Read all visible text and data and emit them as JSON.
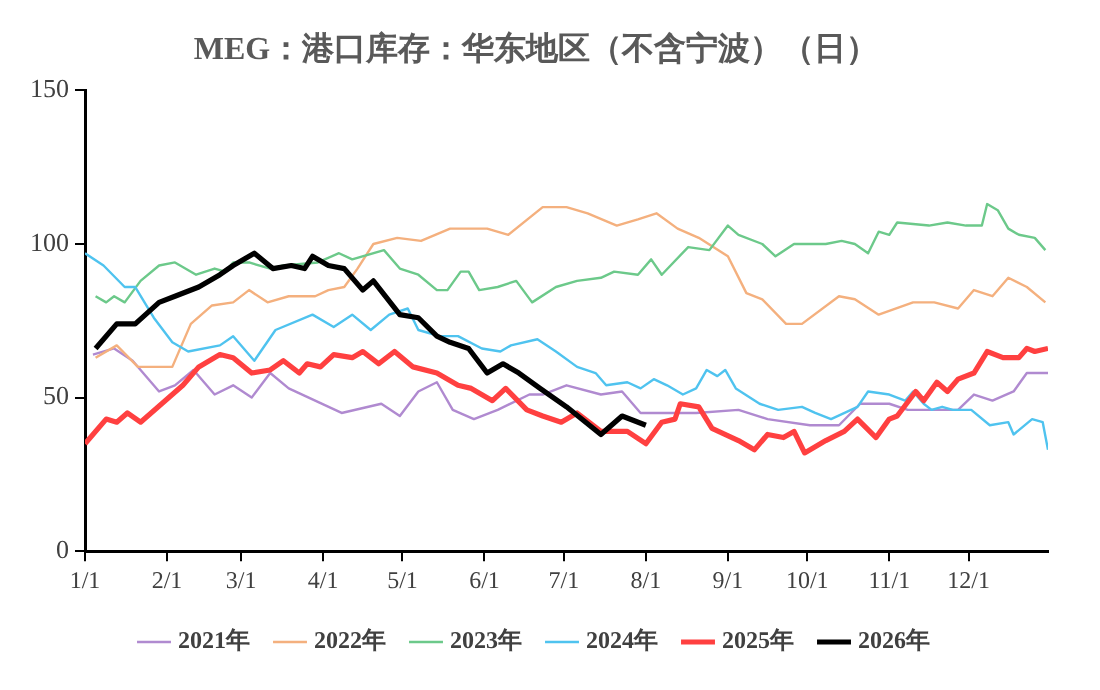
{
  "chart_data": {
    "type": "line",
    "title": "MEG：港口库存：华东地区（不含宁波）（日）",
    "xlim": [
      "--01-01",
      "--12-31"
    ],
    "xticks": [
      {
        "value": "--01-01",
        "label": "1/1"
      },
      {
        "value": "--02-01",
        "label": "2/1"
      },
      {
        "value": "--03-01",
        "label": "3/1"
      },
      {
        "value": "--04-01",
        "label": "4/1"
      },
      {
        "value": "--05-01",
        "label": "5/1"
      },
      {
        "value": "--06-01",
        "label": "6/1"
      },
      {
        "value": "--07-01",
        "label": "7/1"
      },
      {
        "value": "--08-01",
        "label": "8/1"
      },
      {
        "value": "--09-01",
        "label": "9/1"
      },
      {
        "value": "--10-01",
        "label": "10/1"
      },
      {
        "value": "--11-01",
        "label": "11/1"
      },
      {
        "value": "--12-01",
        "label": "12/1"
      }
    ],
    "ylim": [
      0,
      150
    ],
    "yticks": [
      0,
      50,
      100,
      150
    ],
    "grid": false,
    "legend": "bottom",
    "marker": "none",
    "line_style": "solid",
    "series": [
      {
        "name": "2021年",
        "color": "#b08ad0",
        "x": [
          "--01-04",
          "--01-12",
          "--01-19",
          "--01-29",
          "--02-04",
          "--02-11",
          "--02-19",
          "--02-26",
          "--03-05",
          "--03-12",
          "--03-19",
          "--04-08",
          "--04-23",
          "--04-30",
          "--05-07",
          "--05-14",
          "--05-20",
          "--05-28",
          "--06-06",
          "--06-18",
          "--06-23",
          "--07-02",
          "--07-15",
          "--07-23",
          "--07-30",
          "--08-09",
          "--08-20",
          "--09-05",
          "--09-16",
          "--10-02",
          "--10-13",
          "--10-21",
          "--11-01",
          "--11-08",
          "--11-19",
          "--11-27",
          "--12-03",
          "--12-10",
          "--12-18",
          "--12-23",
          "--12-31"
        ],
        "values": [
          64,
          66,
          62,
          52,
          54,
          59,
          51,
          54,
          50,
          58,
          53,
          45,
          48,
          44,
          52,
          55,
          46,
          43,
          46,
          51,
          51,
          54,
          51,
          52,
          45,
          45,
          45,
          46,
          43,
          41,
          41,
          48,
          48,
          46,
          46,
          46,
          51,
          49,
          52,
          58,
          58
        ]
      },
      {
        "name": "2022年",
        "color": "#f4b07e",
        "x": [
          "--01-05",
          "--01-13",
          "--01-21",
          "--02-03",
          "--02-10",
          "--02-18",
          "--02-26",
          "--03-04",
          "--03-11",
          "--03-19",
          "--03-29",
          "--04-03",
          "--04-09",
          "--04-14",
          "--04-20",
          "--04-29",
          "--05-08",
          "--05-19",
          "--06-02",
          "--06-10",
          "--06-23",
          "--07-02",
          "--07-10",
          "--07-21",
          "--07-29",
          "--08-05",
          "--08-13",
          "--08-21",
          "--09-01",
          "--09-08",
          "--09-14",
          "--09-23",
          "--09-29",
          "--10-13",
          "--10-19",
          "--10-28",
          "--11-10",
          "--11-18",
          "--11-27",
          "--12-03",
          "--12-10",
          "--12-16",
          "--12-23",
          "--12-30"
        ],
        "values": [
          63,
          67,
          60,
          60,
          74,
          80,
          81,
          85,
          81,
          83,
          83,
          85,
          86,
          92,
          100,
          102,
          101,
          105,
          105,
          103,
          112,
          112,
          110,
          106,
          108,
          110,
          105,
          102,
          96,
          84,
          82,
          74,
          74,
          83,
          82,
          77,
          81,
          81,
          79,
          85,
          83,
          89,
          86,
          81
        ]
      },
      {
        "name": "2023年",
        "color": "#6cc98a",
        "x": [
          "--01-05",
          "--01-09",
          "--01-12",
          "--01-16",
          "--01-22",
          "--01-29",
          "--02-04",
          "--02-12",
          "--02-19",
          "--02-23",
          "--02-26",
          "--03-04",
          "--03-12",
          "--03-17",
          "--03-30",
          "--04-07",
          "--04-12",
          "--04-24",
          "--04-30",
          "--05-07",
          "--05-14",
          "--05-18",
          "--05-23",
          "--05-26",
          "--05-30",
          "--06-06",
          "--06-13",
          "--06-19",
          "--06-28",
          "--07-06",
          "--07-15",
          "--07-20",
          "--07-29",
          "--08-03",
          "--08-07",
          "--08-17",
          "--08-25",
          "--09-01",
          "--09-05",
          "--09-14",
          "--09-19",
          "--09-26",
          "--10-08",
          "--10-14",
          "--10-19",
          "--10-24",
          "--10-28",
          "--11-01",
          "--11-04",
          "--11-16",
          "--11-23",
          "--11-30",
          "--12-06",
          "--12-08",
          "--12-12",
          "--12-16",
          "--12-20",
          "--12-26",
          "--12-30"
        ],
        "values": [
          83,
          81,
          83,
          81,
          88,
          93,
          94,
          90,
          92,
          91,
          94,
          94,
          92,
          93,
          94,
          97,
          95,
          98,
          92,
          90,
          85,
          85,
          91,
          91,
          85,
          86,
          88,
          81,
          86,
          88,
          89,
          91,
          90,
          95,
          90,
          99,
          98,
          106,
          103,
          100,
          96,
          100,
          100,
          101,
          100,
          97,
          104,
          103,
          107,
          106,
          107,
          106,
          106,
          113,
          111,
          105,
          103,
          102,
          98
        ]
      },
      {
        "name": "2024年",
        "color": "#4fc3ef",
        "x": [
          "--01-01",
          "--01-08",
          "--01-16",
          "--01-20",
          "--01-27",
          "--02-03",
          "--02-09",
          "--02-21",
          "--02-26",
          "--03-06",
          "--03-14",
          "--03-28",
          "--04-05",
          "--04-12",
          "--04-19",
          "--04-26",
          "--05-03",
          "--05-07",
          "--05-15",
          "--05-22",
          "--05-31",
          "--06-07",
          "--06-11",
          "--06-21",
          "--06-28",
          "--07-06",
          "--07-13",
          "--07-17",
          "--07-25",
          "--07-30",
          "--08-04",
          "--08-09",
          "--08-15",
          "--08-20",
          "--08-24",
          "--08-28",
          "--08-31",
          "--09-04",
          "--09-13",
          "--09-20",
          "--09-29",
          "--10-04",
          "--10-10",
          "--10-20",
          "--10-24",
          "--11-01",
          "--11-07",
          "--11-10",
          "--11-14",
          "--11-17",
          "--11-21",
          "--11-25",
          "--12-02",
          "--12-09",
          "--12-16",
          "--12-18",
          "--12-25",
          "--12-29",
          "--12-31"
        ],
        "values": [
          97,
          93,
          86,
          86,
          76,
          68,
          65,
          67,
          70,
          62,
          72,
          77,
          73,
          77,
          72,
          77,
          79,
          72,
          70,
          70,
          66,
          65,
          67,
          69,
          65,
          60,
          58,
          54,
          55,
          53,
          56,
          54,
          51,
          53,
          59,
          57,
          59,
          53,
          48,
          46,
          47,
          45,
          43,
          47,
          52,
          51,
          49,
          52,
          48,
          46,
          47,
          46,
          46,
          41,
          42,
          38,
          43,
          42,
          33
        ]
      },
      {
        "name": "2025年",
        "color": "#ff4040",
        "x": [
          "--01-01",
          "--01-09",
          "--01-13",
          "--01-17",
          "--01-22",
          "--01-30",
          "--02-07",
          "--02-13",
          "--02-21",
          "--02-26",
          "--03-05",
          "--03-12",
          "--03-17",
          "--03-23",
          "--03-26",
          "--03-31",
          "--04-05",
          "--04-12",
          "--04-16",
          "--04-22",
          "--04-28",
          "--05-05",
          "--05-14",
          "--05-22",
          "--05-27",
          "--06-04",
          "--06-09",
          "--06-17",
          "--06-23",
          "--06-30",
          "--07-06",
          "--07-15",
          "--07-25",
          "--08-01",
          "--08-07",
          "--08-12",
          "--08-14",
          "--08-21",
          "--08-26",
          "--09-05",
          "--09-11",
          "--09-16",
          "--09-22",
          "--09-26",
          "--09-30",
          "--10-08",
          "--10-15",
          "--10-20",
          "--10-27",
          "--11-01",
          "--11-04",
          "--11-11",
          "--11-14",
          "--11-19",
          "--11-23",
          "--11-27",
          "--12-03",
          "--12-08",
          "--12-14",
          "--12-20",
          "--12-23",
          "--12-26",
          "--12-31"
        ],
        "values": [
          35,
          43,
          42,
          45,
          42,
          48,
          54,
          60,
          64,
          63,
          58,
          59,
          62,
          58,
          61,
          60,
          64,
          63,
          65,
          61,
          65,
          60,
          58,
          54,
          53,
          49,
          53,
          46,
          44,
          42,
          45,
          39,
          39,
          35,
          42,
          43,
          48,
          47,
          40,
          36,
          33,
          38,
          37,
          39,
          32,
          36,
          39,
          43,
          37,
          43,
          44,
          52,
          49,
          55,
          52,
          56,
          58,
          65,
          63,
          63,
          66,
          65,
          66
        ]
      },
      {
        "name": "2026年",
        "color": "#000000",
        "x": [
          "--01-05",
          "--01-13",
          "--01-20",
          "--01-29",
          "--02-04",
          "--02-13",
          "--02-21",
          "--02-26",
          "--03-06",
          "--03-13",
          "--03-20",
          "--03-25",
          "--03-28",
          "--04-03",
          "--04-09",
          "--04-16",
          "--04-20",
          "--04-30",
          "--05-07",
          "--05-14",
          "--05-19",
          "--05-26",
          "--06-02",
          "--06-08",
          "--06-14",
          "--06-22",
          "--07-02",
          "--07-15",
          "--07-23",
          "--08-01"
        ],
        "values": [
          66,
          74,
          74,
          81,
          83,
          86,
          90,
          93,
          97,
          92,
          93,
          92,
          96,
          93,
          92,
          85,
          88,
          77,
          76,
          70,
          68,
          66,
          58,
          61,
          58,
          53,
          47,
          38,
          44,
          41
        ]
      }
    ]
  }
}
